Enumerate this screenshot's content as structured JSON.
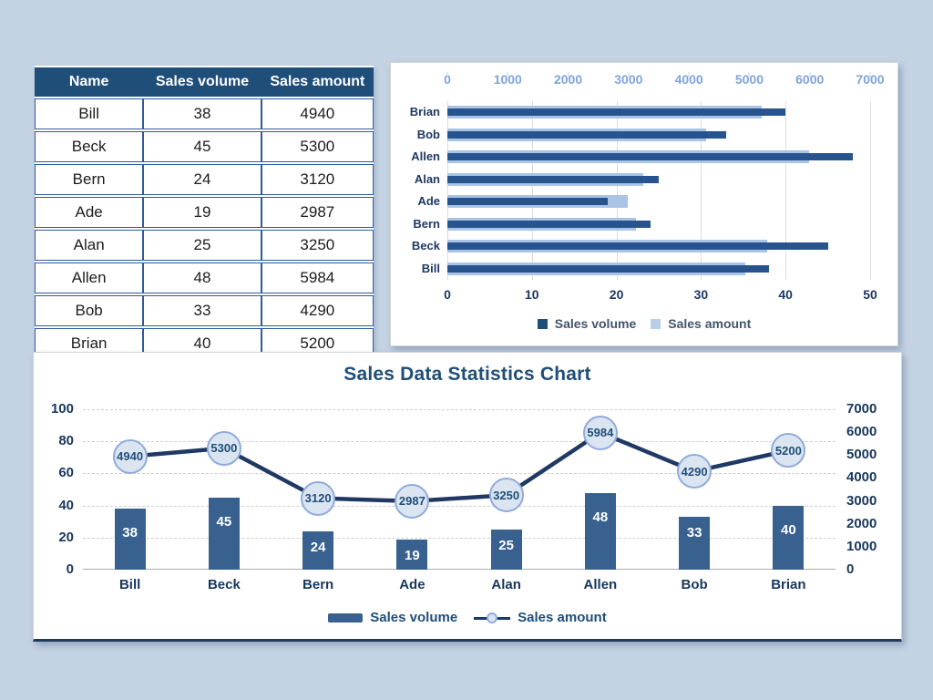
{
  "background_color": "#c4d3e4",
  "colors": {
    "table_header_bg": "#1f4e79",
    "table_border": "#2f5b9e",
    "volume_bar_dark": "#27548e",
    "amount_bar_light": "#a9c4e4",
    "combo_bar": "#38618f",
    "line": "#1f3864",
    "marker_fill": "#dbe5f1",
    "marker_border": "#8faadc",
    "top_axis_label": "#7fa4dc",
    "axis_label_dark": "#17375d",
    "legend_text_gray": "#44546a",
    "title_text": "#1f4e79"
  },
  "table": {
    "columns": [
      "Name",
      "Sales volume",
      "Sales amount"
    ],
    "rows": [
      [
        "Bill",
        "38",
        "4940"
      ],
      [
        "Beck",
        "45",
        "5300"
      ],
      [
        "Bern",
        "24",
        "3120"
      ],
      [
        "Ade",
        "19",
        "2987"
      ],
      [
        "Alan",
        "25",
        "3250"
      ],
      [
        "Allen",
        "48",
        "5984"
      ],
      [
        "Bob",
        "33",
        "4290"
      ],
      [
        "Brian",
        "40",
        "5200"
      ]
    ]
  },
  "chart_data": [
    {
      "type": "bar",
      "orientation": "horizontal",
      "categories": [
        "Brian",
        "Bob",
        "Allen",
        "Alan",
        "Ade",
        "Bern",
        "Beck",
        "Bill"
      ],
      "series": [
        {
          "name": "Sales volume",
          "values": [
            40,
            33,
            48,
            25,
            19,
            24,
            45,
            38
          ],
          "axis": "bottom",
          "axis_range": [
            0,
            50
          ],
          "color": "#27548e"
        },
        {
          "name": "Sales amount",
          "values": [
            5200,
            4290,
            5984,
            3250,
            2987,
            3120,
            5300,
            4940
          ],
          "axis": "top",
          "axis_range": [
            0,
            7000
          ],
          "color": "#a9c4e4"
        }
      ],
      "top_axis_ticks": [
        "0",
        "1000",
        "2000",
        "3000",
        "4000",
        "5000",
        "6000",
        "7000"
      ],
      "bottom_axis_ticks": [
        "0",
        "10",
        "20",
        "30",
        "40",
        "50"
      ],
      "legend": [
        "Sales volume",
        "Sales amount"
      ],
      "legend_position": "bottom",
      "grid": true
    },
    {
      "type": "combo",
      "title": "Sales Data Statistics Chart",
      "categories": [
        "Bill",
        "Beck",
        "Bern",
        "Ade",
        "Alan",
        "Allen",
        "Bob",
        "Brian"
      ],
      "bar_series": {
        "name": "Sales volume",
        "values": [
          38,
          45,
          24,
          19,
          25,
          48,
          33,
          40
        ],
        "axis": "left",
        "axis_range": [
          0,
          100
        ],
        "color": "#38618f"
      },
      "line_series": {
        "name": "Sales amount",
        "values": [
          4940,
          5300,
          3120,
          2987,
          3250,
          5984,
          4290,
          5200
        ],
        "axis": "right",
        "axis_range": [
          0,
          7000
        ],
        "color": "#1f3864",
        "data_labels": true
      },
      "left_axis_ticks": [
        "0",
        "20",
        "40",
        "60",
        "80",
        "100"
      ],
      "right_axis_ticks": [
        "0",
        "1000",
        "2000",
        "3000",
        "4000",
        "5000",
        "6000",
        "7000"
      ],
      "legend": [
        "Sales volume",
        "Sales amount"
      ],
      "legend_position": "bottom",
      "grid": "dashed-horizontal"
    }
  ]
}
